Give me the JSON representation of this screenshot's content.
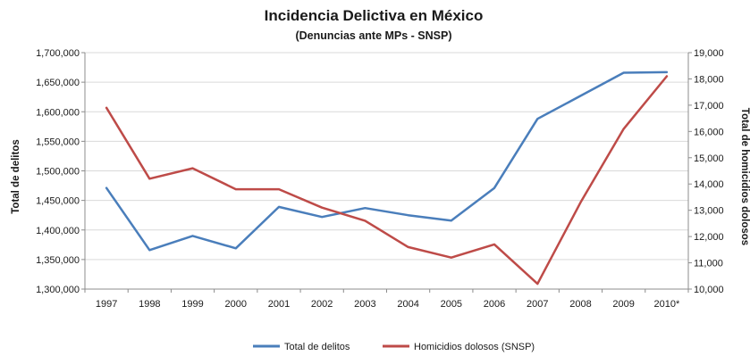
{
  "chart_data": {
    "type": "line",
    "title": "Incidencia Delictiva en México",
    "subtitle": "(Denuncias ante MPs - SNSP)",
    "ylabel": "Total de delitos",
    "y2label": "Total de homicidios dolosos",
    "categories": [
      "1997",
      "1998",
      "1999",
      "2000",
      "2001",
      "2002",
      "2003",
      "2004",
      "2005",
      "2006",
      "2007",
      "2008",
      "2009",
      "2010*"
    ],
    "ylim": [
      1300000,
      1700000
    ],
    "y_ticks": [
      1300000,
      1350000,
      1400000,
      1450000,
      1500000,
      1550000,
      1600000,
      1650000,
      1700000
    ],
    "y_tick_labels": [
      "1,300,000",
      "1,350,000",
      "1,400,000",
      "1,450,000",
      "1,500,000",
      "1,550,000",
      "1,600,000",
      "1,650,000",
      "1,700,000"
    ],
    "y2lim": [
      10000,
      19000
    ],
    "y2_ticks": [
      10000,
      11000,
      12000,
      13000,
      14000,
      15000,
      16000,
      17000,
      18000,
      19000
    ],
    "y2_tick_labels": [
      "10,000",
      "11,000",
      "12,000",
      "13,000",
      "14,000",
      "15,000",
      "16,000",
      "17,000",
      "18,000",
      "19,000"
    ],
    "grid": true,
    "legend_position": "bottom",
    "series": [
      {
        "name": "Total de delitos",
        "axis": "left",
        "color": "#4a7ebb",
        "values": [
          1471000,
          1366000,
          1390000,
          1369000,
          1439000,
          1422000,
          1437000,
          1425000,
          1416000,
          1471000,
          1588000,
          1627000,
          1666000,
          1667000
        ]
      },
      {
        "name": "Homicidios dolosos (SNSP)",
        "axis": "right",
        "color": "#be4b48",
        "values": [
          16900,
          14200,
          14600,
          13800,
          13800,
          13100,
          12600,
          11600,
          11200,
          11700,
          10200,
          13300,
          16100,
          18100
        ]
      }
    ]
  }
}
